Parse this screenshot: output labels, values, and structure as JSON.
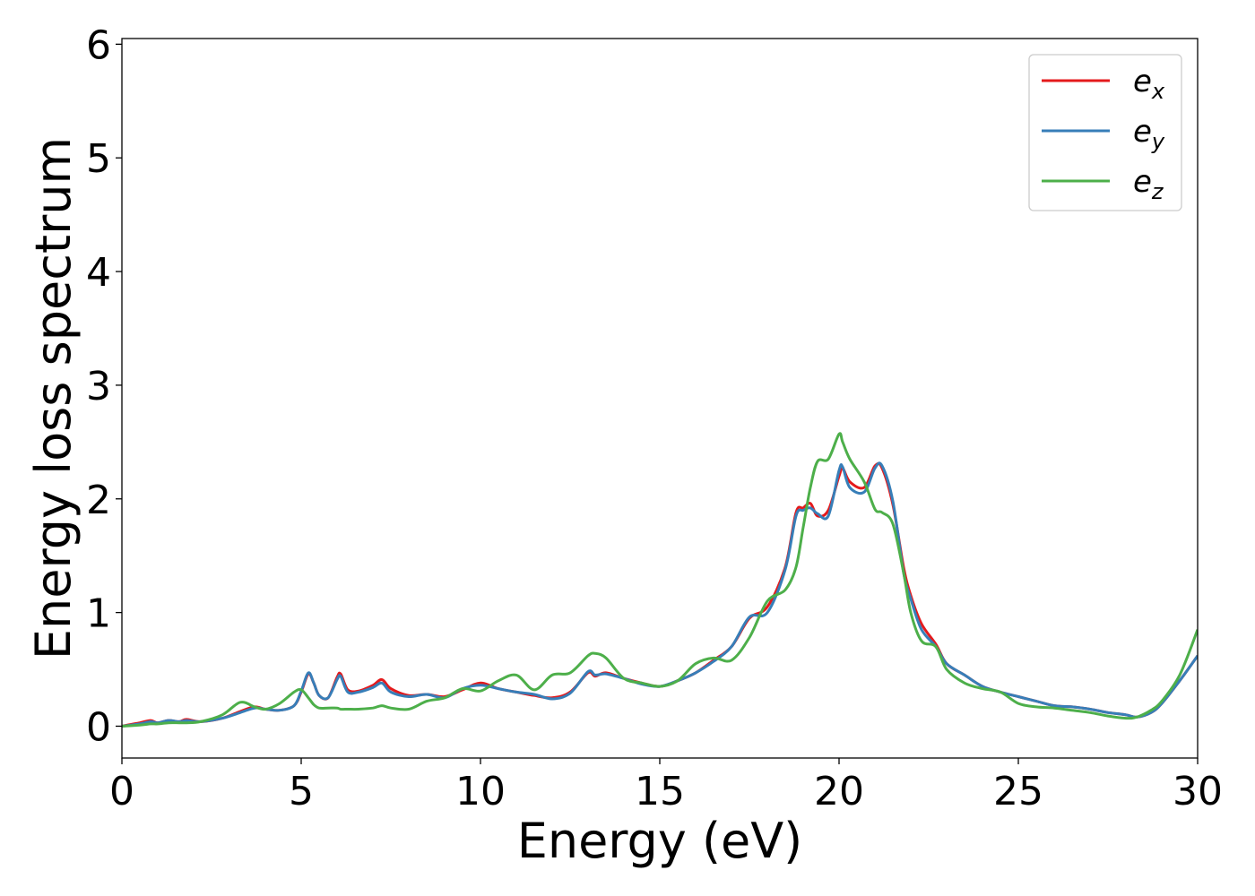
{
  "chart_data": {
    "type": "line",
    "xlabel": "Energy (eV)",
    "ylabel": "Energy loss spectrum",
    "xlim": [
      0,
      30
    ],
    "ylim": [
      -0.28,
      6.05
    ],
    "xticks": [
      0,
      5,
      10,
      15,
      20,
      25,
      30
    ],
    "yticks": [
      0,
      1,
      2,
      3,
      4,
      5,
      6
    ],
    "grid": false,
    "legend_position": "top-right",
    "x": [
      0,
      0.5,
      0.8,
      1.0,
      1.3,
      1.6,
      1.8,
      2.2,
      2.8,
      3.3,
      3.7,
      4.0,
      4.4,
      4.8,
      5.0,
      5.2,
      5.35,
      5.5,
      5.75,
      6.0,
      6.1,
      6.3,
      6.6,
      7.0,
      7.25,
      7.5,
      8.0,
      8.5,
      9.0,
      9.5,
      10.0,
      10.5,
      11.0,
      11.5,
      12.0,
      12.5,
      13.0,
      13.2,
      13.5,
      14.0,
      14.5,
      15.0,
      15.5,
      16.0,
      16.5,
      17.0,
      17.5,
      18.0,
      18.5,
      18.8,
      19.0,
      19.2,
      19.4,
      19.7,
      20.0,
      20.1,
      20.3,
      20.7,
      21.0,
      21.2,
      21.5,
      21.8,
      22.0,
      22.3,
      22.7,
      23.0,
      23.5,
      24.0,
      24.5,
      25.0,
      25.5,
      26.0,
      26.5,
      27.0,
      27.5,
      28.0,
      28.3,
      28.7,
      29.0,
      29.5,
      30.0
    ],
    "series": [
      {
        "name": "e_x",
        "color": "#e41a1c",
        "values": [
          0.0,
          0.03,
          0.05,
          0.03,
          0.05,
          0.04,
          0.06,
          0.04,
          0.07,
          0.13,
          0.17,
          0.15,
          0.14,
          0.18,
          0.3,
          0.46,
          0.38,
          0.27,
          0.25,
          0.43,
          0.46,
          0.32,
          0.31,
          0.36,
          0.41,
          0.33,
          0.27,
          0.28,
          0.26,
          0.32,
          0.38,
          0.33,
          0.3,
          0.27,
          0.25,
          0.3,
          0.47,
          0.44,
          0.47,
          0.42,
          0.38,
          0.35,
          0.4,
          0.47,
          0.58,
          0.7,
          0.95,
          1.05,
          1.4,
          1.88,
          1.92,
          1.96,
          1.85,
          1.9,
          2.2,
          2.27,
          2.15,
          2.1,
          2.29,
          2.27,
          1.95,
          1.4,
          1.15,
          0.9,
          0.72,
          0.55,
          0.45,
          0.35,
          0.3,
          0.26,
          0.22,
          0.18,
          0.17,
          0.15,
          0.12,
          0.1,
          0.08,
          0.12,
          0.2,
          0.4,
          0.62
        ]
      },
      {
        "name": "e_y",
        "color": "#377eb8",
        "values": [
          0.0,
          0.02,
          0.04,
          0.03,
          0.05,
          0.04,
          0.05,
          0.04,
          0.07,
          0.12,
          0.16,
          0.15,
          0.14,
          0.18,
          0.31,
          0.47,
          0.38,
          0.27,
          0.25,
          0.41,
          0.44,
          0.3,
          0.3,
          0.34,
          0.38,
          0.3,
          0.26,
          0.28,
          0.25,
          0.33,
          0.36,
          0.33,
          0.3,
          0.28,
          0.24,
          0.29,
          0.48,
          0.45,
          0.46,
          0.42,
          0.37,
          0.35,
          0.4,
          0.47,
          0.57,
          0.7,
          0.96,
          1.0,
          1.38,
          1.85,
          1.9,
          1.92,
          1.87,
          1.85,
          2.25,
          2.28,
          2.1,
          2.06,
          2.27,
          2.29,
          1.98,
          1.35,
          1.12,
          0.85,
          0.7,
          0.55,
          0.45,
          0.35,
          0.3,
          0.26,
          0.22,
          0.18,
          0.17,
          0.15,
          0.12,
          0.1,
          0.08,
          0.12,
          0.2,
          0.4,
          0.62
        ]
      },
      {
        "name": "e_z",
        "color": "#4daf4a",
        "values": [
          0.0,
          0.01,
          0.02,
          0.02,
          0.03,
          0.03,
          0.03,
          0.04,
          0.1,
          0.21,
          0.17,
          0.15,
          0.2,
          0.3,
          0.32,
          0.25,
          0.19,
          0.16,
          0.16,
          0.16,
          0.15,
          0.15,
          0.15,
          0.16,
          0.18,
          0.16,
          0.15,
          0.22,
          0.25,
          0.33,
          0.31,
          0.4,
          0.45,
          0.32,
          0.45,
          0.47,
          0.62,
          0.64,
          0.6,
          0.42,
          0.38,
          0.35,
          0.4,
          0.55,
          0.6,
          0.58,
          0.78,
          1.1,
          1.2,
          1.4,
          1.75,
          2.1,
          2.33,
          2.35,
          2.57,
          2.5,
          2.35,
          2.15,
          1.91,
          1.88,
          1.78,
          1.35,
          1.0,
          0.75,
          0.7,
          0.5,
          0.38,
          0.33,
          0.3,
          0.2,
          0.17,
          0.16,
          0.14,
          0.12,
          0.09,
          0.07,
          0.08,
          0.14,
          0.22,
          0.45,
          0.85
        ]
      }
    ],
    "legend": [
      {
        "base": "e",
        "sub": "x"
      },
      {
        "base": "e",
        "sub": "y"
      },
      {
        "base": "e",
        "sub": "z"
      }
    ]
  }
}
